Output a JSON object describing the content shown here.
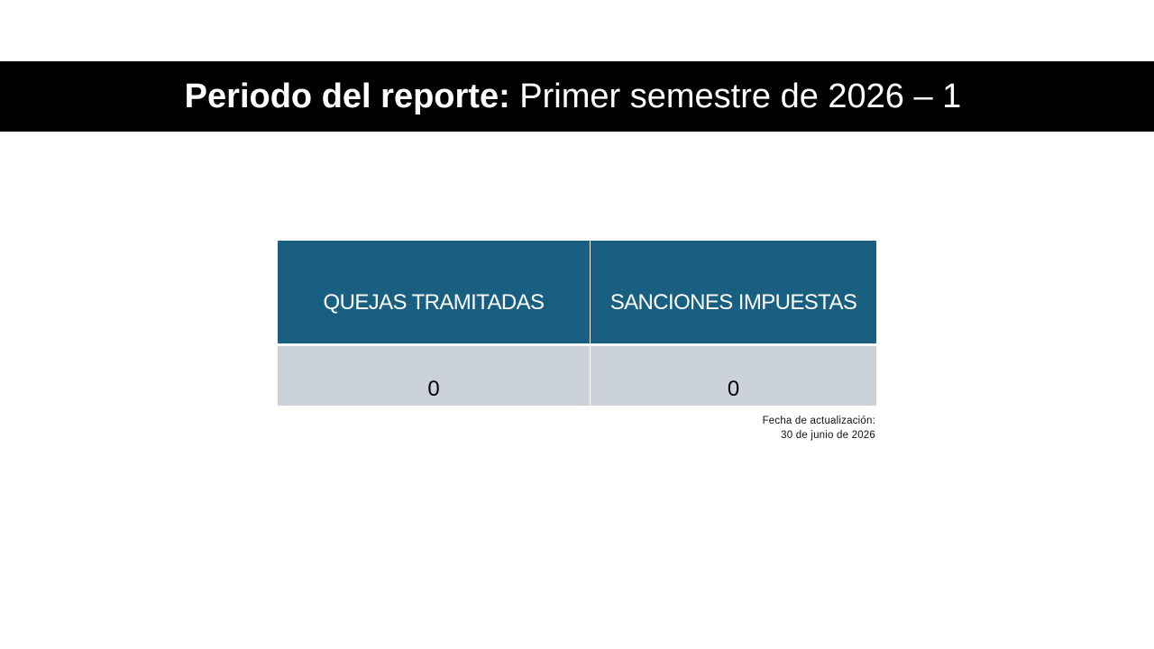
{
  "header": {
    "label": "Periodo del reporte:",
    "period": "Primer semestre de 2026 – 1"
  },
  "table": {
    "columns": [
      "QUEJAS TRAMITADAS",
      "SANCIONES IMPUESTAS"
    ],
    "values": [
      "0",
      "0"
    ]
  },
  "footnote": {
    "label": "Fecha de actualización:",
    "date": "30 de junio de 2026"
  },
  "colors": {
    "title_band": "#000000",
    "header_cell": "#185f82",
    "value_cell": "#ccd2d9"
  }
}
